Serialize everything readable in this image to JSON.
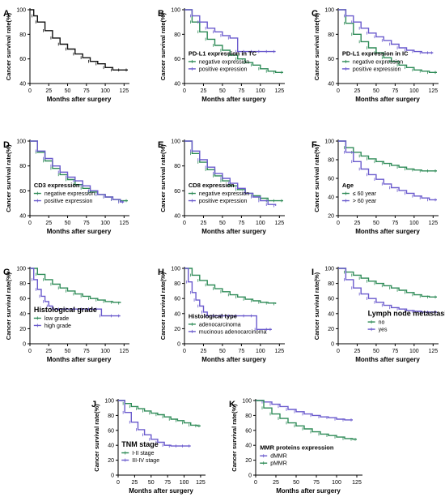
{
  "figure": {
    "colors": {
      "black": "#111111",
      "green": "#2e8b57",
      "purple": "#6a5acd",
      "axis": "#000000"
    }
  },
  "chart_data": [
    {
      "panel": "A",
      "type": "line",
      "xlabel": "Months after surgery",
      "ylabel": "Cancer survival rate(%)",
      "xlim": [
        0,
        130
      ],
      "ylim": [
        40,
        100
      ],
      "x_ticks": [
        0,
        25,
        50,
        75,
        100,
        125
      ],
      "y_ticks": [
        40,
        60,
        80,
        100
      ],
      "legend_title": "",
      "series": [
        {
          "name": "",
          "color": "#111111",
          "x": [
            0,
            5,
            10,
            20,
            30,
            40,
            50,
            60,
            70,
            80,
            90,
            100,
            110,
            120,
            130
          ],
          "y": [
            100,
            95,
            90,
            83,
            77,
            72,
            68,
            64,
            61,
            58,
            56,
            53,
            51,
            51,
            51
          ]
        }
      ]
    },
    {
      "panel": "B",
      "type": "line",
      "xlabel": "Months after surgery",
      "ylabel": "Cancer survival rate(%)",
      "xlim": [
        0,
        130
      ],
      "ylim": [
        40,
        100
      ],
      "x_ticks": [
        0,
        25,
        50,
        75,
        100,
        125
      ],
      "y_ticks": [
        40,
        60,
        80,
        100
      ],
      "legend_title": "PD-L1 expression in TC",
      "series": [
        {
          "name": "negative expression",
          "color": "#2e8b57",
          "x": [
            0,
            10,
            20,
            30,
            40,
            50,
            60,
            70,
            80,
            90,
            100,
            110,
            120,
            130
          ],
          "y": [
            100,
            90,
            82,
            76,
            71,
            67,
            63,
            60,
            57,
            55,
            52,
            50,
            49,
            49
          ]
        },
        {
          "name": "positive expression",
          "color": "#6a5acd",
          "x": [
            0,
            10,
            20,
            30,
            40,
            50,
            60,
            70,
            80,
            90,
            100,
            110,
            120
          ],
          "y": [
            100,
            95,
            90,
            85,
            82,
            79,
            77,
            66,
            66,
            66,
            66,
            66,
            66
          ]
        }
      ]
    },
    {
      "panel": "C",
      "type": "line",
      "xlabel": "Months after surgery",
      "ylabel": "Cancer survival rate(%)",
      "xlim": [
        0,
        130
      ],
      "ylim": [
        40,
        100
      ],
      "x_ticks": [
        0,
        25,
        50,
        75,
        100,
        125
      ],
      "y_ticks": [
        40,
        60,
        80,
        100
      ],
      "legend_title": "PD-L1 expression in IC",
      "series": [
        {
          "name": "negative expression",
          "color": "#2e8b57",
          "x": [
            0,
            10,
            20,
            30,
            40,
            50,
            60,
            70,
            80,
            90,
            100,
            110,
            120,
            130
          ],
          "y": [
            100,
            89,
            80,
            74,
            69,
            65,
            61,
            58,
            55,
            53,
            51,
            50,
            49,
            49
          ]
        },
        {
          "name": "positive expression",
          "color": "#6a5acd",
          "x": [
            0,
            10,
            20,
            30,
            40,
            50,
            60,
            70,
            80,
            90,
            100,
            110,
            120,
            125
          ],
          "y": [
            100,
            95,
            90,
            85,
            81,
            78,
            75,
            72,
            69,
            67,
            66,
            65,
            65,
            65
          ]
        }
      ]
    },
    {
      "panel": "D",
      "type": "line",
      "xlabel": "Months after surgery",
      "ylabel": "Cancer survival rate(%)",
      "xlim": [
        0,
        130
      ],
      "ylim": [
        40,
        100
      ],
      "x_ticks": [
        0,
        25,
        50,
        75,
        100,
        125
      ],
      "y_ticks": [
        40,
        60,
        80,
        100
      ],
      "legend_title": "CD3 expression",
      "series": [
        {
          "name": "negative expression",
          "color": "#2e8b57",
          "x": [
            0,
            10,
            20,
            30,
            40,
            50,
            60,
            70,
            80,
            90,
            100,
            110,
            120,
            130
          ],
          "y": [
            100,
            91,
            84,
            78,
            73,
            69,
            65,
            62,
            59,
            57,
            55,
            53,
            52,
            52
          ]
        },
        {
          "name": "positive expression",
          "color": "#6a5acd",
          "x": [
            0,
            10,
            20,
            30,
            40,
            50,
            60,
            70,
            80,
            90,
            100,
            110,
            120,
            125
          ],
          "y": [
            100,
            92,
            86,
            80,
            75,
            71,
            68,
            64,
            60,
            57,
            55,
            53,
            51,
            51
          ]
        }
      ]
    },
    {
      "panel": "E",
      "type": "line",
      "xlabel": "Months after surgery",
      "ylabel": "Cancer survival rate(%)",
      "xlim": [
        0,
        130
      ],
      "ylim": [
        40,
        100
      ],
      "x_ticks": [
        0,
        25,
        50,
        75,
        100,
        125
      ],
      "y_ticks": [
        40,
        60,
        80,
        100
      ],
      "legend_title": "CD8 expression",
      "series": [
        {
          "name": "negative expression",
          "color": "#2e8b57",
          "x": [
            0,
            10,
            20,
            30,
            40,
            50,
            60,
            70,
            80,
            90,
            100,
            110,
            120,
            130
          ],
          "y": [
            100,
            90,
            83,
            77,
            72,
            68,
            64,
            61,
            58,
            56,
            54,
            52,
            52,
            52
          ]
        },
        {
          "name": "positive expression",
          "color": "#6a5acd",
          "x": [
            0,
            10,
            20,
            30,
            40,
            50,
            60,
            70,
            80,
            90,
            100,
            110,
            120
          ],
          "y": [
            100,
            92,
            85,
            79,
            74,
            70,
            66,
            62,
            58,
            55,
            52,
            49,
            48
          ]
        }
      ]
    },
    {
      "panel": "F",
      "type": "line",
      "xlabel": "Months after surgery",
      "ylabel": "Cancer survival rate(%)",
      "xlim": [
        0,
        130
      ],
      "ylim": [
        20,
        100
      ],
      "x_ticks": [
        0,
        25,
        50,
        75,
        100,
        125
      ],
      "y_ticks": [
        20,
        40,
        60,
        80,
        100
      ],
      "legend_title": "Age",
      "series": [
        {
          "name": "≤ 60 year",
          "color": "#2e8b57",
          "x": [
            0,
            10,
            20,
            30,
            40,
            50,
            60,
            70,
            80,
            90,
            100,
            110,
            120,
            130
          ],
          "y": [
            100,
            93,
            88,
            84,
            81,
            78,
            76,
            74,
            72,
            70,
            69,
            68,
            68,
            68
          ]
        },
        {
          "name": "> 60 year",
          "color": "#6a5acd",
          "x": [
            0,
            10,
            20,
            30,
            40,
            50,
            60,
            70,
            80,
            90,
            100,
            110,
            120,
            130
          ],
          "y": [
            100,
            88,
            78,
            70,
            64,
            59,
            54,
            50,
            47,
            44,
            41,
            39,
            37,
            37
          ]
        }
      ]
    },
    {
      "panel": "G",
      "type": "line",
      "xlabel": "Months after surgery",
      "ylabel": "Cancer survival rate(%)",
      "xlim": [
        0,
        130
      ],
      "ylim": [
        0,
        100
      ],
      "x_ticks": [
        0,
        25,
        50,
        75,
        100,
        125
      ],
      "y_ticks": [
        0,
        20,
        40,
        60,
        80,
        100
      ],
      "legend_title": "Histological grade",
      "series": [
        {
          "name": "low grade",
          "color": "#2e8b57",
          "x": [
            0,
            10,
            20,
            30,
            40,
            50,
            60,
            70,
            80,
            90,
            100,
            110,
            120
          ],
          "y": [
            100,
            92,
            85,
            79,
            74,
            70,
            66,
            63,
            60,
            58,
            56,
            55,
            54
          ]
        },
        {
          "name": "high grade",
          "color": "#6a5acd",
          "x": [
            0,
            5,
            10,
            15,
            20,
            25,
            30,
            40,
            50,
            60,
            70,
            80,
            90,
            95,
            110,
            120
          ],
          "y": [
            100,
            85,
            72,
            63,
            56,
            50,
            46,
            46,
            46,
            46,
            46,
            46,
            46,
            37,
            37,
            37
          ]
        }
      ]
    },
    {
      "panel": "H",
      "type": "line",
      "xlabel": "Months after surgery",
      "ylabel": "Cancer survival rate(%)",
      "xlim": [
        0,
        130
      ],
      "ylim": [
        0,
        100
      ],
      "x_ticks": [
        0,
        25,
        50,
        75,
        100,
        125
      ],
      "y_ticks": [
        0,
        20,
        40,
        60,
        80,
        100
      ],
      "legend_title": "Histological type",
      "series": [
        {
          "name": "adenocarcinoma",
          "color": "#2e8b57",
          "x": [
            0,
            10,
            20,
            30,
            40,
            50,
            60,
            70,
            80,
            90,
            100,
            110,
            120
          ],
          "y": [
            100,
            91,
            84,
            78,
            73,
            69,
            65,
            62,
            59,
            57,
            55,
            54,
            53
          ]
        },
        {
          "name": "mucinous adenocarcinoma",
          "color": "#6a5acd",
          "x": [
            0,
            5,
            10,
            15,
            20,
            25,
            30,
            40,
            50,
            60,
            70,
            80,
            90,
            95,
            110,
            115
          ],
          "y": [
            100,
            82,
            68,
            58,
            50,
            42,
            37,
            37,
            37,
            37,
            37,
            37,
            37,
            19,
            19,
            19
          ]
        }
      ]
    },
    {
      "panel": "I",
      "type": "line",
      "xlabel": "Months after surgery",
      "ylabel": "Cancer survival rate(%)",
      "xlim": [
        0,
        130
      ],
      "ylim": [
        0,
        100
      ],
      "x_ticks": [
        0,
        25,
        50,
        75,
        100,
        125
      ],
      "y_ticks": [
        0,
        20,
        40,
        60,
        80,
        100
      ],
      "legend_title": "Lymph node metastasis",
      "series": [
        {
          "name": "no",
          "color": "#2e8b57",
          "x": [
            0,
            10,
            20,
            30,
            40,
            50,
            60,
            70,
            80,
            90,
            100,
            110,
            120,
            130
          ],
          "y": [
            100,
            95,
            91,
            87,
            83,
            80,
            77,
            74,
            71,
            68,
            65,
            63,
            62,
            62
          ]
        },
        {
          "name": "yes",
          "color": "#6a5acd",
          "x": [
            0,
            10,
            20,
            30,
            40,
            50,
            60,
            70,
            80,
            90,
            100,
            110,
            120,
            130
          ],
          "y": [
            100,
            85,
            74,
            66,
            60,
            55,
            51,
            48,
            46,
            44,
            43,
            42,
            42,
            42
          ]
        }
      ]
    },
    {
      "panel": "J",
      "type": "line",
      "xlabel": "Months after surgery",
      "ylabel": "Cancer survival rate(%)",
      "xlim": [
        0,
        130
      ],
      "ylim": [
        0,
        100
      ],
      "x_ticks": [
        0,
        25,
        50,
        75,
        100,
        125
      ],
      "y_ticks": [
        0,
        20,
        40,
        60,
        80,
        100
      ],
      "legend_title": "TNM stage",
      "series": [
        {
          "name": "I-II stage",
          "color": "#2e8b57",
          "x": [
            0,
            10,
            20,
            30,
            40,
            50,
            60,
            70,
            80,
            90,
            100,
            110,
            120,
            125
          ],
          "y": [
            100,
            96,
            92,
            89,
            86,
            83,
            81,
            78,
            75,
            73,
            70,
            67,
            66,
            66
          ]
        },
        {
          "name": "III-IV stage",
          "color": "#6a5acd",
          "x": [
            0,
            10,
            20,
            30,
            40,
            50,
            60,
            70,
            80,
            90,
            100,
            110
          ],
          "y": [
            100,
            84,
            71,
            61,
            54,
            48,
            44,
            40,
            39,
            39,
            39,
            39
          ]
        }
      ]
    },
    {
      "panel": "K",
      "type": "line",
      "xlabel": "Months after surgery",
      "ylabel": "Cancer survival rate(%)",
      "xlim": [
        0,
        130
      ],
      "ylim": [
        0,
        100
      ],
      "x_ticks": [
        0,
        25,
        50,
        75,
        100,
        125
      ],
      "y_ticks": [
        0,
        20,
        40,
        60,
        80,
        100
      ],
      "legend_title": "MMR proteins expression",
      "series": [
        {
          "name": "dMMR",
          "color": "#6a5acd",
          "x": [
            0,
            10,
            20,
            30,
            40,
            50,
            60,
            70,
            80,
            90,
            100,
            110,
            120
          ],
          "y": [
            100,
            98,
            95,
            92,
            88,
            85,
            82,
            80,
            78,
            77,
            75,
            74,
            74
          ]
        },
        {
          "name": "pMMR",
          "color": "#2e8b57",
          "x": [
            0,
            10,
            20,
            30,
            40,
            50,
            60,
            70,
            80,
            90,
            100,
            110,
            120,
            125
          ],
          "y": [
            100,
            90,
            82,
            76,
            70,
            66,
            62,
            58,
            55,
            53,
            51,
            49,
            48,
            48
          ]
        }
      ]
    }
  ]
}
